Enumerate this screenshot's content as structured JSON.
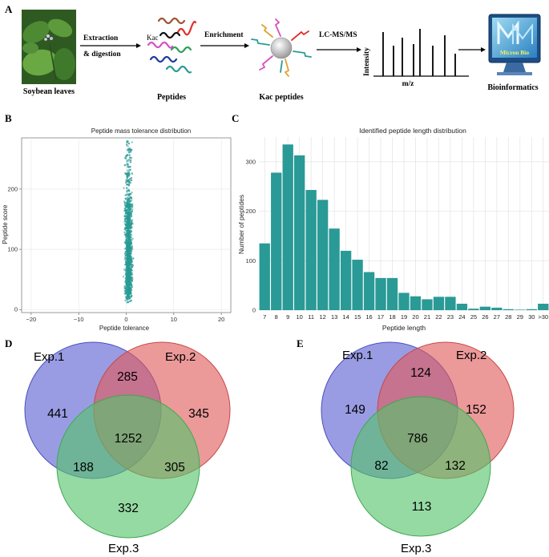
{
  "panel_labels": {
    "a": "A",
    "b": "B",
    "c": "C",
    "d": "D",
    "e": "E"
  },
  "workflow": {
    "soybean_caption": "Soybean leaves",
    "arrow1_label_line1": "Extraction",
    "arrow1_label_line2": "& digestion",
    "kac_label": "Kac",
    "peptides_caption": "Peptides",
    "arrow2_label": "Enrichment",
    "kac_peptides_caption": "Kac peptides",
    "arrow3_label": "LC-MS/MS",
    "ms_ylabel": "Intensity",
    "ms_xlabel": "m/z",
    "monitor_text": "Micron Bio",
    "bioinformatics_caption": "Bioinformatics",
    "colors": {
      "leaf": "#3f6f2a",
      "teal": "#2a9a96",
      "bead": "#cfcfcf"
    }
  },
  "chart_data": [
    {
      "type": "scatter",
      "title": "Peptide mass tolerance distribution",
      "xlabel": "Peptide tolerance",
      "ylabel": "Peptide score",
      "xlim": [
        -22,
        22
      ],
      "ylim": [
        -5,
        285
      ],
      "xticks": [
        -20,
        -10,
        0,
        10,
        20
      ],
      "yticks": [
        0,
        100,
        200
      ],
      "point_color": "#2a9a96",
      "summary": {
        "x_center": 0.5,
        "x_spread": 0.6,
        "y_range": [
          0,
          280
        ],
        "n_points": 1800
      }
    },
    {
      "type": "bar",
      "title": "Identified peptide length distribution",
      "xlabel": "Peptide length",
      "ylabel": "Number of peptides",
      "ylim": [
        0,
        350
      ],
      "yticks": [
        0,
        100,
        200,
        300
      ],
      "bar_color": "#2a9a96",
      "categories": [
        "7",
        "8",
        "9",
        "10",
        "11",
        "12",
        "13",
        "14",
        "15",
        "16",
        "17",
        "18",
        "19",
        "20",
        "21",
        "22",
        "23",
        "24",
        "25",
        "26",
        "27",
        "28",
        "29",
        "30",
        ">30"
      ],
      "values": [
        135,
        278,
        335,
        313,
        243,
        223,
        165,
        120,
        102,
        77,
        65,
        65,
        35,
        28,
        22,
        27,
        27,
        13,
        3,
        7,
        5,
        2,
        1,
        2,
        13
      ]
    }
  ],
  "venn_d": {
    "set1": "Exp.1",
    "set2": "Exp.2",
    "set3": "Exp.3",
    "only1": "441",
    "only2": "345",
    "only3": "332",
    "ab": "285",
    "ac": "188",
    "bc": "305",
    "abc": "1252",
    "colors": {
      "set1": "#5b5fd0",
      "set2": "#e05a5a",
      "set3": "#55c46a"
    }
  },
  "venn_e": {
    "set1": "Exp.1",
    "set2": "Exp.2",
    "set3": "Exp.3",
    "only1": "149",
    "only2": "152",
    "only3": "113",
    "ab": "124",
    "ac": "82",
    "bc": "132",
    "abc": "786",
    "colors": {
      "set1": "#5b5fd0",
      "set2": "#e05a5a",
      "set3": "#55c46a"
    }
  }
}
